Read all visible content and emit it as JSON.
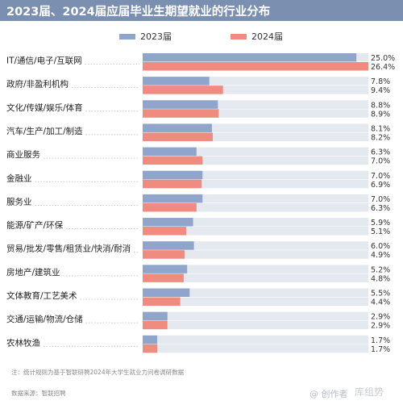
{
  "header": {
    "title": "2023届、2024届应届毕业生期望就业的行业分布"
  },
  "colors": {
    "header_bg": "#7b8fb0",
    "series_2023": "#8fa5cb",
    "series_2024": "#f08b7f",
    "track": "#e4e8ef"
  },
  "chart_data": {
    "type": "bar",
    "orientation": "horizontal",
    "title": "2023届、2024届应届毕业生期望就业的行业分布",
    "legend_position": "top",
    "value_suffix": "%",
    "xlim": [
      0,
      26.4
    ],
    "categories": [
      "IT/通信/电子/互联网",
      "政府/非盈利机构",
      "文化/传媒/娱乐/体育",
      "汽车/生产/加工/制造",
      "商业服务",
      "金融业",
      "服务业",
      "能源/矿产/环保",
      "贸易/批发/零售/租赁业/快消/耐消",
      "房地产/建筑业",
      "文体教育/工艺美术",
      "交通/运输/物流/仓储",
      "农林牧渔"
    ],
    "series": [
      {
        "name": "2023届",
        "values": [
          25.0,
          7.8,
          8.8,
          8.1,
          6.3,
          7.0,
          7.0,
          5.9,
          6.0,
          5.2,
          5.5,
          2.9,
          1.7
        ]
      },
      {
        "name": "2024届",
        "values": [
          26.4,
          9.4,
          8.9,
          8.2,
          7.0,
          6.9,
          6.3,
          5.1,
          4.9,
          4.8,
          4.4,
          2.9,
          1.7
        ]
      }
    ]
  },
  "footer": {
    "note": "注：统计规则为基于智联研聘2024年大学生就业力问卷调研数据",
    "source": "数据来源：智联招聘",
    "watermark": "@ 创作者",
    "watermark_alt": "库组势"
  }
}
